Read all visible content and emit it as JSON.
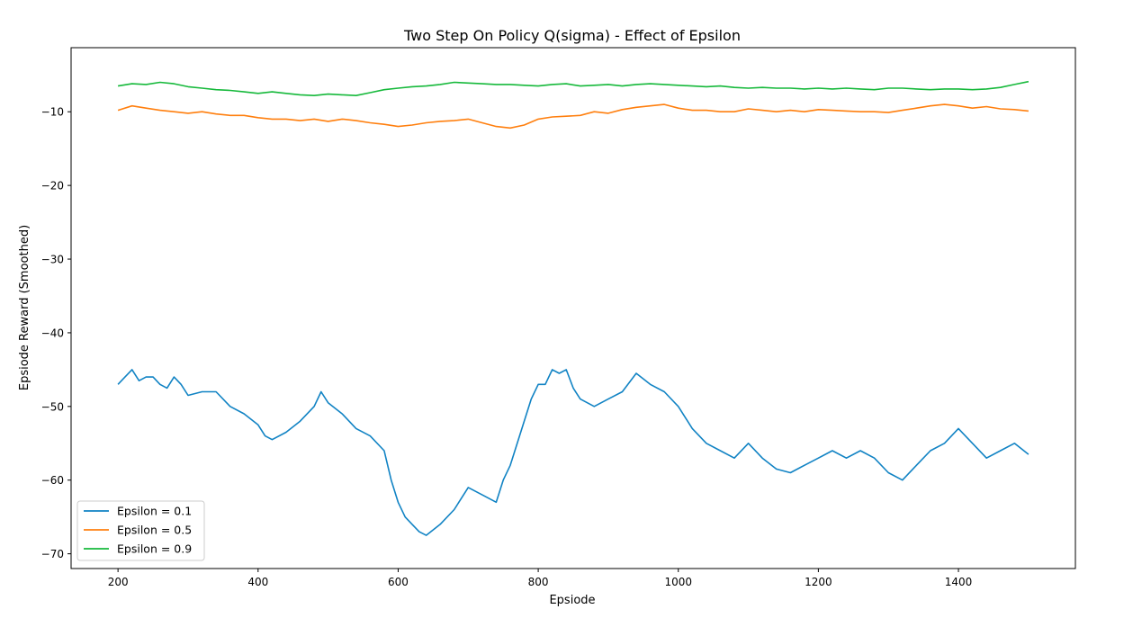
{
  "chart_data": {
    "type": "line",
    "title": "Two Step On Policy Q(sigma) - Effect of Epsilon",
    "xlabel": "Epsiode",
    "ylabel": "Epsiode Reward (Smoothed)",
    "xlim": [
      133,
      1567
    ],
    "ylim": [
      -72,
      -1.3
    ],
    "xticks": [
      200,
      400,
      600,
      800,
      1000,
      1200,
      1400
    ],
    "yticks": [
      -10,
      -20,
      -30,
      -40,
      -50,
      -60,
      -70
    ],
    "xtick_labels": [
      "200",
      "400",
      "600",
      "800",
      "1000",
      "1200",
      "1400"
    ],
    "ytick_labels": [
      "−10",
      "−20",
      "−30",
      "−40",
      "−50",
      "−60",
      "−70"
    ],
    "grid": false,
    "legend_position": "lower-left",
    "series": [
      {
        "name": "Epsilon = 0.1",
        "color": "#1183c4",
        "x": [
          200,
          210,
          220,
          230,
          240,
          250,
          260,
          270,
          280,
          290,
          300,
          320,
          340,
          360,
          380,
          400,
          410,
          420,
          440,
          460,
          480,
          490,
          500,
          520,
          540,
          560,
          580,
          590,
          600,
          610,
          620,
          630,
          640,
          660,
          680,
          700,
          720,
          740,
          750,
          760,
          780,
          790,
          800,
          810,
          820,
          830,
          840,
          850,
          860,
          880,
          900,
          920,
          940,
          960,
          980,
          1000,
          1020,
          1040,
          1060,
          1080,
          1100,
          1120,
          1140,
          1160,
          1180,
          1200,
          1220,
          1240,
          1260,
          1280,
          1300,
          1320,
          1340,
          1360,
          1380,
          1400,
          1420,
          1440,
          1460,
          1480,
          1500
        ],
        "y": [
          -47,
          -46,
          -45,
          -46.5,
          -46,
          -46,
          -47,
          -47.5,
          -46,
          -47,
          -48.5,
          -48,
          -48,
          -50,
          -51,
          -52.5,
          -54,
          -54.5,
          -53.5,
          -52,
          -50,
          -48,
          -49.5,
          -51,
          -53,
          -54,
          -56,
          -60,
          -63,
          -65,
          -66,
          -67,
          -67.5,
          -66,
          -64,
          -61,
          -62,
          -63,
          -60,
          -58,
          -52,
          -49,
          -47,
          -47,
          -45,
          -45.5,
          -45,
          -47.5,
          -49,
          -50,
          -49,
          -48,
          -45.5,
          -47,
          -48,
          -50,
          -53,
          -55,
          -56,
          -57,
          -55,
          -57,
          -58.5,
          -59,
          -58,
          -57,
          -56,
          -57,
          -56,
          -57,
          -59,
          -60,
          -58,
          -56,
          -55,
          -53,
          -55,
          -57,
          -56,
          -55,
          -56.5
        ]
      },
      {
        "name": "Epsilon = 0.5",
        "color": "#ff7f0e",
        "x": [
          200,
          220,
          240,
          260,
          280,
          300,
          320,
          340,
          360,
          380,
          400,
          420,
          440,
          460,
          480,
          500,
          520,
          540,
          560,
          580,
          600,
          620,
          640,
          660,
          680,
          700,
          720,
          740,
          760,
          780,
          800,
          820,
          840,
          860,
          880,
          900,
          920,
          940,
          960,
          980,
          1000,
          1020,
          1040,
          1060,
          1080,
          1100,
          1120,
          1140,
          1160,
          1180,
          1200,
          1220,
          1240,
          1260,
          1280,
          1300,
          1320,
          1340,
          1360,
          1380,
          1400,
          1420,
          1440,
          1460,
          1480,
          1500
        ],
        "y": [
          -9.8,
          -9.2,
          -9.5,
          -9.8,
          -10.0,
          -10.2,
          -10.0,
          -10.3,
          -10.5,
          -10.5,
          -10.8,
          -11.0,
          -11.0,
          -11.2,
          -11.0,
          -11.3,
          -11.0,
          -11.2,
          -11.5,
          -11.7,
          -12.0,
          -11.8,
          -11.5,
          -11.3,
          -11.2,
          -11.0,
          -11.5,
          -12.0,
          -12.2,
          -11.8,
          -11.0,
          -10.7,
          -10.6,
          -10.5,
          -10.0,
          -10.2,
          -9.7,
          -9.4,
          -9.2,
          -9.0,
          -9.5,
          -9.8,
          -9.8,
          -10.0,
          -10.0,
          -9.6,
          -9.8,
          -10.0,
          -9.8,
          -10.0,
          -9.7,
          -9.8,
          -9.9,
          -10.0,
          -10.0,
          -10.1,
          -9.8,
          -9.5,
          -9.2,
          -9.0,
          -9.2,
          -9.5,
          -9.3,
          -9.6,
          -9.7,
          -9.9
        ]
      },
      {
        "name": "Epsilon = 0.9",
        "color": "#16b93b",
        "x": [
          200,
          220,
          240,
          260,
          280,
          300,
          320,
          340,
          360,
          380,
          400,
          420,
          440,
          460,
          480,
          500,
          520,
          540,
          560,
          580,
          600,
          620,
          640,
          660,
          680,
          700,
          720,
          740,
          760,
          780,
          800,
          820,
          840,
          860,
          880,
          900,
          920,
          940,
          960,
          980,
          1000,
          1020,
          1040,
          1060,
          1080,
          1100,
          1120,
          1140,
          1160,
          1180,
          1200,
          1220,
          1240,
          1260,
          1280,
          1300,
          1320,
          1340,
          1360,
          1380,
          1400,
          1420,
          1440,
          1460,
          1480,
          1500
        ],
        "y": [
          -6.5,
          -6.2,
          -6.3,
          -6.0,
          -6.2,
          -6.6,
          -6.8,
          -7.0,
          -7.1,
          -7.3,
          -7.5,
          -7.3,
          -7.5,
          -7.7,
          -7.8,
          -7.6,
          -7.7,
          -7.8,
          -7.4,
          -7.0,
          -6.8,
          -6.6,
          -6.5,
          -6.3,
          -6.0,
          -6.1,
          -6.2,
          -6.3,
          -6.3,
          -6.4,
          -6.5,
          -6.3,
          -6.2,
          -6.5,
          -6.4,
          -6.3,
          -6.5,
          -6.3,
          -6.2,
          -6.3,
          -6.4,
          -6.5,
          -6.6,
          -6.5,
          -6.7,
          -6.8,
          -6.7,
          -6.8,
          -6.8,
          -6.9,
          -6.8,
          -6.9,
          -6.8,
          -6.9,
          -7.0,
          -6.8,
          -6.8,
          -6.9,
          -7.0,
          -6.9,
          -6.9,
          -7.0,
          -6.9,
          -6.7,
          -6.3,
          -5.9
        ]
      }
    ]
  }
}
